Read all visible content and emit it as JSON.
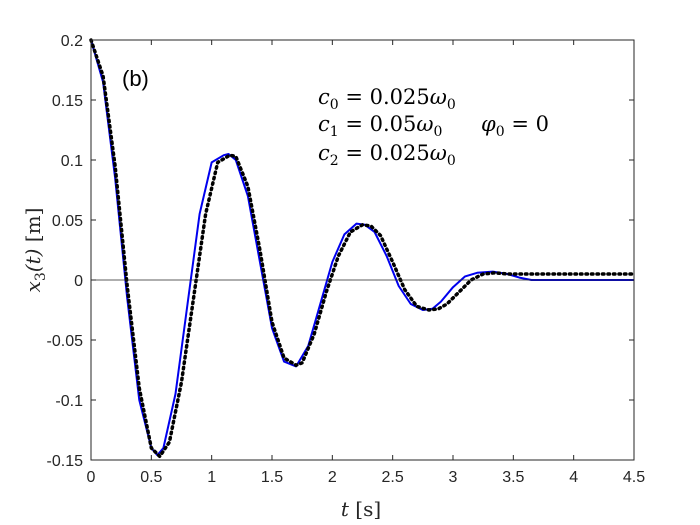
{
  "chart_data": {
    "type": "line",
    "panel_label": "(b)",
    "xlabel": "t [s]",
    "ylabel": "x3(t) [m]",
    "xlim": [
      0,
      4.5
    ],
    "ylim": [
      -0.15,
      0.2
    ],
    "xticks": [
      0,
      0.5,
      1,
      1.5,
      2,
      2.5,
      3,
      3.5,
      4,
      4.5
    ],
    "xtick_labels": [
      "0",
      "0.5",
      "1",
      "1.5",
      "2",
      "2.5",
      "3",
      "3.5",
      "4",
      "4.5"
    ],
    "yticks": [
      -0.15,
      -0.1,
      -0.05,
      0,
      0.05,
      0.1,
      0.15,
      0.2
    ],
    "ytick_labels": [
      "-0.15",
      "-0.1",
      "-0.05",
      "0",
      "0.05",
      "0.1",
      "0.15",
      "0.2"
    ],
    "grid": false,
    "zero_line": true,
    "annotations": {
      "c0": "c0 = 0.025ω0",
      "c1": "c1 = 0.05ω0",
      "c2": "c2 = 0.025ω0",
      "phi0": "φ0 = 0"
    },
    "series": [
      {
        "style": "solid",
        "color": "#0000ee",
        "x": [
          0,
          0.1,
          0.2,
          0.3,
          0.4,
          0.5,
          0.55,
          0.6,
          0.7,
          0.8,
          0.9,
          1.0,
          1.1,
          1.14,
          1.2,
          1.3,
          1.4,
          1.5,
          1.6,
          1.7,
          1.8,
          1.9,
          2.0,
          2.1,
          2.2,
          2.27,
          2.35,
          2.45,
          2.55,
          2.65,
          2.75,
          2.83,
          2.9,
          3.0,
          3.1,
          3.2,
          3.33,
          3.45,
          3.55,
          3.65,
          4.0,
          4.5
        ],
        "y": [
          0.2,
          0.165,
          0.085,
          -0.015,
          -0.1,
          -0.14,
          -0.146,
          -0.14,
          -0.095,
          -0.02,
          0.055,
          0.098,
          0.104,
          0.105,
          0.1,
          0.07,
          0.015,
          -0.04,
          -0.068,
          -0.072,
          -0.055,
          -0.02,
          0.015,
          0.038,
          0.047,
          0.046,
          0.04,
          0.02,
          -0.005,
          -0.02,
          -0.025,
          -0.024,
          -0.018,
          -0.006,
          0.003,
          0.006,
          0.007,
          0.005,
          0.002,
          0.0,
          0.0,
          0.0
        ]
      },
      {
        "style": "dotted",
        "color": "#000000",
        "x": [
          0,
          0.1,
          0.2,
          0.3,
          0.4,
          0.5,
          0.57,
          0.65,
          0.75,
          0.85,
          0.95,
          1.05,
          1.15,
          1.2,
          1.3,
          1.4,
          1.5,
          1.6,
          1.7,
          1.75,
          1.85,
          1.95,
          2.05,
          2.15,
          2.25,
          2.32,
          2.4,
          2.5,
          2.6,
          2.7,
          2.8,
          2.88,
          2.95,
          3.05,
          3.15,
          3.25,
          3.35,
          3.45,
          3.6,
          4.0,
          4.5
        ],
        "y": [
          0.2,
          0.17,
          0.095,
          -0.005,
          -0.09,
          -0.14,
          -0.147,
          -0.135,
          -0.085,
          -0.015,
          0.055,
          0.098,
          0.104,
          0.103,
          0.078,
          0.025,
          -0.035,
          -0.065,
          -0.071,
          -0.069,
          -0.045,
          -0.01,
          0.02,
          0.04,
          0.046,
          0.045,
          0.037,
          0.015,
          -0.008,
          -0.022,
          -0.025,
          -0.024,
          -0.02,
          -0.01,
          0.0,
          0.005,
          0.006,
          0.005,
          0.005,
          0.005,
          0.005
        ]
      }
    ]
  }
}
